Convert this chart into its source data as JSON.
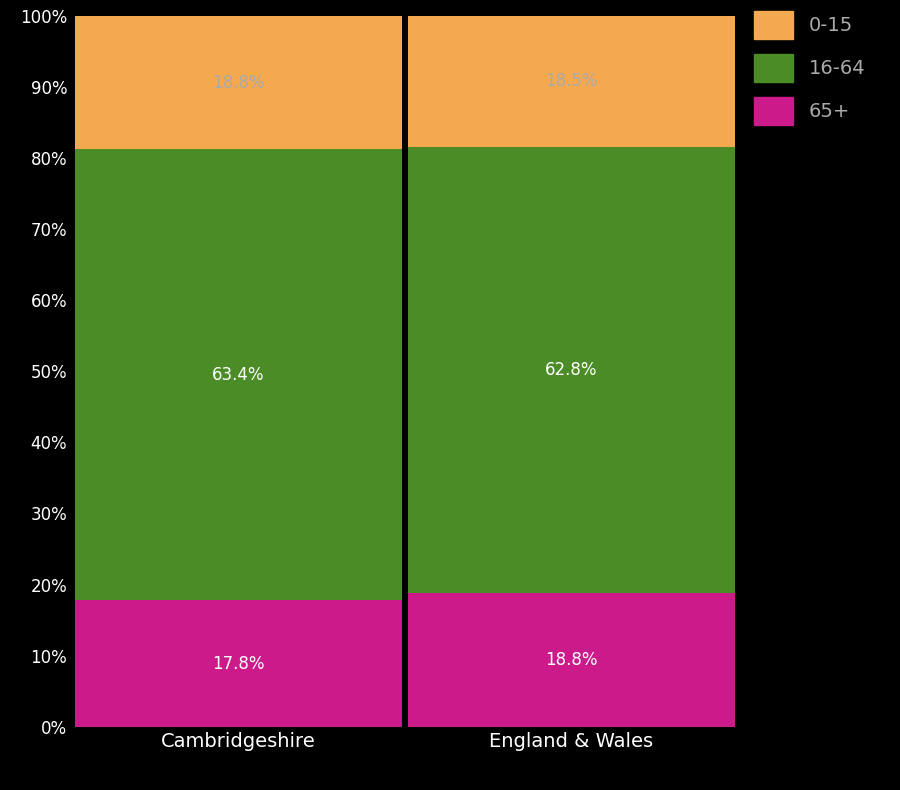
{
  "categories": [
    "Cambridgeshire",
    "England & Wales"
  ],
  "segments": {
    "65+": [
      17.8,
      18.8
    ],
    "16-64": [
      63.4,
      62.8
    ],
    "0-15": [
      18.8,
      18.5
    ]
  },
  "colors": {
    "65+": "#cc1a8a",
    "16-64": "#4c8c26",
    "0-15": "#f5a94e"
  },
  "label_colors": {
    "65+": "#ffffff",
    "16-64": "#ffffff",
    "0-15": "#aaaaaa"
  },
  "background_color": "#000000",
  "plot_bg_color": "#000000",
  "text_color": "#ffffff",
  "legend_text_color": "#aaaaaa",
  "ytick_labels": [
    "0%",
    "10%",
    "20%",
    "30%",
    "40%",
    "50%",
    "60%",
    "70%",
    "80%",
    "90%",
    "100%"
  ],
  "legend_labels": [
    "0-15",
    "16-64",
    "65+"
  ],
  "bar_width": 0.98,
  "figsize": [
    9.0,
    7.9
  ],
  "dpi": 100
}
